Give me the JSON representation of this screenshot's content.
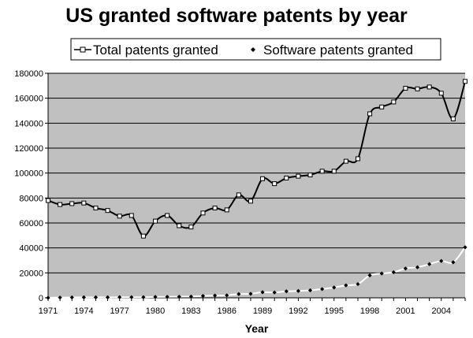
{
  "chart_data": {
    "type": "line",
    "title": "US granted software patents by year",
    "xlabel": "Year",
    "ylabel": "",
    "xlim": [
      1971,
      2006
    ],
    "ylim": [
      0,
      180000
    ],
    "x_ticks": [
      "1971",
      "1974",
      "1977",
      "1980",
      "1983",
      "1986",
      "1989",
      "1992",
      "1995",
      "1998",
      "2001",
      "2004"
    ],
    "y_ticks": [
      "0",
      "20000",
      "40000",
      "60000",
      "80000",
      "100000",
      "120000",
      "140000",
      "160000",
      "180000"
    ],
    "grid": "horizontal",
    "legend_position": "top",
    "colors": {
      "plot_background": "#c0c0c0",
      "total_line": "#000000",
      "software_line": "#ffffff",
      "marker": "#000000"
    },
    "x": [
      1971,
      1972,
      1973,
      1974,
      1975,
      1976,
      1977,
      1978,
      1979,
      1980,
      1981,
      1982,
      1983,
      1984,
      1985,
      1986,
      1987,
      1988,
      1989,
      1990,
      1991,
      1992,
      1993,
      1994,
      1995,
      1996,
      1997,
      1998,
      1999,
      2000,
      2001,
      2002,
      2003,
      2004,
      2005,
      2006
    ],
    "series": [
      {
        "name": "Total patents granted",
        "marker": "square",
        "values": [
          78000,
          74800,
          75500,
          76000,
          72000,
          70000,
          65500,
          66000,
          49500,
          61500,
          66000,
          57800,
          56800,
          68000,
          72000,
          70500,
          82500,
          77500,
          95500,
          91500,
          96000,
          97500,
          98500,
          101500,
          101500,
          109500,
          111500,
          147500,
          153000,
          157000,
          168000,
          167500,
          169000,
          164000,
          143500,
          173500
        ]
      },
      {
        "name": "Software patents granted",
        "marker": "diamond",
        "values": [
          0,
          200,
          300,
          400,
          400,
          400,
          500,
          500,
          500,
          700,
          800,
          900,
          1000,
          1500,
          1800,
          2000,
          3000,
          3200,
          4500,
          4300,
          5200,
          5500,
          6000,
          7000,
          8300,
          10000,
          11000,
          18000,
          19500,
          20500,
          23500,
          24500,
          27000,
          29500,
          28500,
          40500
        ]
      }
    ]
  }
}
